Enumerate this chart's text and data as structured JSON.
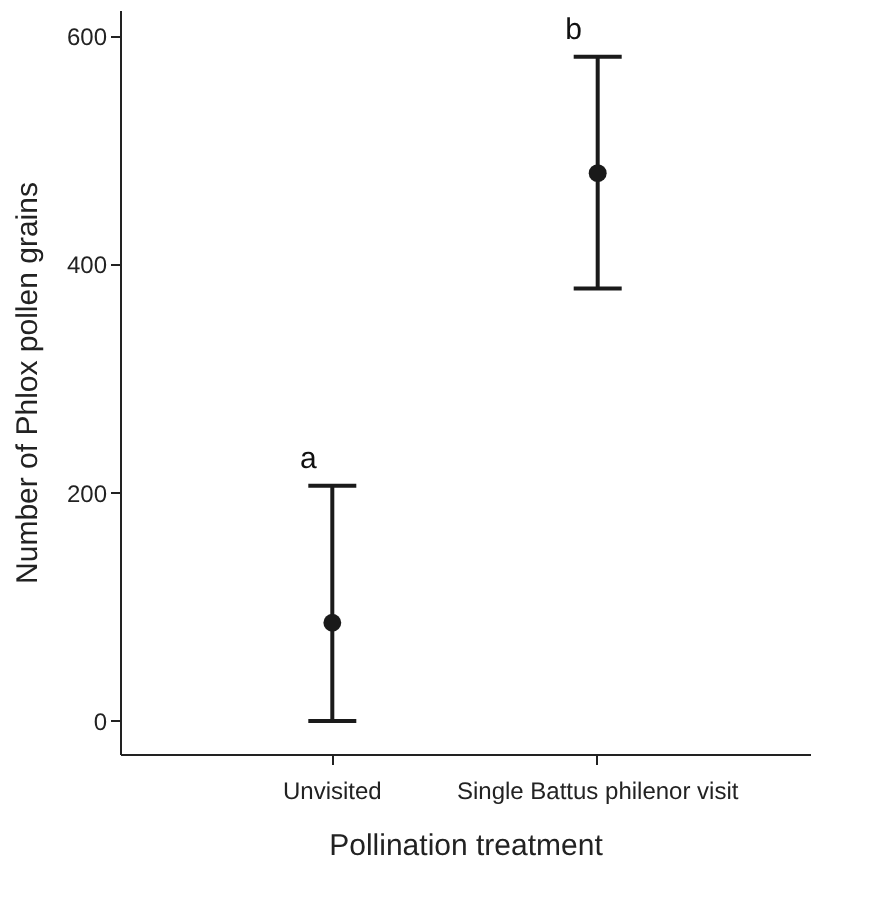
{
  "chart_data": {
    "type": "scatter",
    "xlabel": "Pollination treatment",
    "ylabel": "Number of Phlox pollen grains",
    "categories": [
      "Unvisited",
      "Single Battus philenor visit"
    ],
    "series": [
      {
        "color": "#1a1a1a",
        "values": [
          86,
          480
        ],
        "errors": [
          [
            0,
            206
          ],
          [
            379,
            582
          ]
        ]
      }
    ],
    "ylim": [
      -29,
      623
    ],
    "yticks": [
      0,
      200,
      400,
      600
    ],
    "grid": false,
    "marker": "circle",
    "annotations": [
      "a",
      "b"
    ]
  }
}
